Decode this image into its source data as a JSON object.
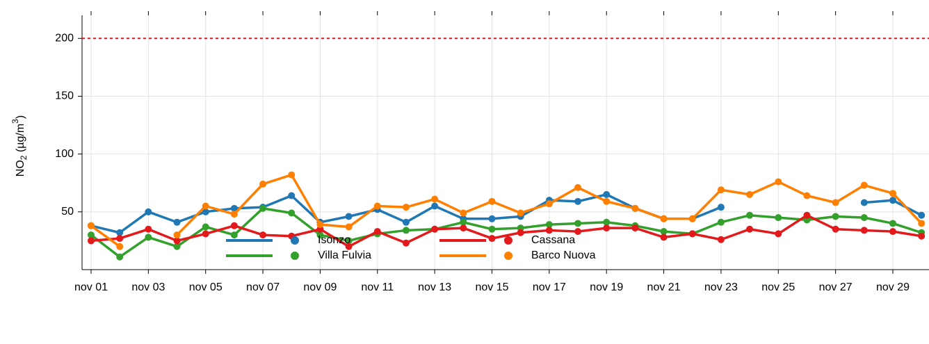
{
  "chart_data": {
    "type": "line",
    "y_label_parts": [
      "NO",
      "2",
      " (µg/m",
      "3",
      ")"
    ],
    "categories": [
      "nov 01",
      null,
      "nov 03",
      null,
      "nov 05",
      null,
      "nov 07",
      null,
      "nov 09",
      null,
      "nov 11",
      null,
      "nov 13",
      null,
      "nov 15",
      null,
      "nov 17",
      null,
      "nov 19",
      null,
      "nov 21",
      null,
      "nov 23",
      null,
      "nov 25",
      null,
      "nov 27",
      null,
      "nov 29",
      null
    ],
    "series": [
      {
        "name": "Isonzo",
        "color": "#1f78b4",
        "values": [
          38,
          32,
          50,
          41,
          50,
          53,
          54,
          64,
          41,
          46,
          52,
          41,
          55,
          44,
          44,
          46,
          60,
          59,
          65,
          53,
          44,
          44,
          54,
          null,
          null,
          null,
          null,
          58,
          60,
          47
        ]
      },
      {
        "name": "Villa Fulvia",
        "color": "#33a02c",
        "values": [
          30,
          11,
          28,
          20,
          37,
          30,
          53,
          49,
          30,
          25,
          31,
          34,
          35,
          41,
          35,
          36,
          39,
          40,
          41,
          38,
          33,
          31,
          41,
          47,
          45,
          43,
          46,
          45,
          40,
          32
        ]
      },
      {
        "name": "Cassana",
        "color": "#e31a1c",
        "values": [
          25,
          27,
          35,
          25,
          31,
          38,
          30,
          29,
          35,
          20,
          33,
          23,
          35,
          36,
          27,
          32,
          34,
          33,
          36,
          36,
          28,
          31,
          26,
          35,
          31,
          47,
          35,
          34,
          33,
          29
        ]
      },
      {
        "name": "Barco Nuova",
        "color": "#ff7f00",
        "values": [
          38,
          20,
          null,
          30,
          55,
          48,
          74,
          82,
          39,
          37,
          55,
          54,
          61,
          49,
          59,
          49,
          57,
          71,
          59,
          53,
          44,
          44,
          69,
          65,
          76,
          64,
          58,
          73,
          66,
          40
        ]
      }
    ],
    "reference_line": {
      "value": 200,
      "color": "#e31a1c"
    },
    "ylim": [
      0,
      220
    ],
    "yticks": [
      50,
      100,
      150,
      200
    ],
    "grid": true
  }
}
